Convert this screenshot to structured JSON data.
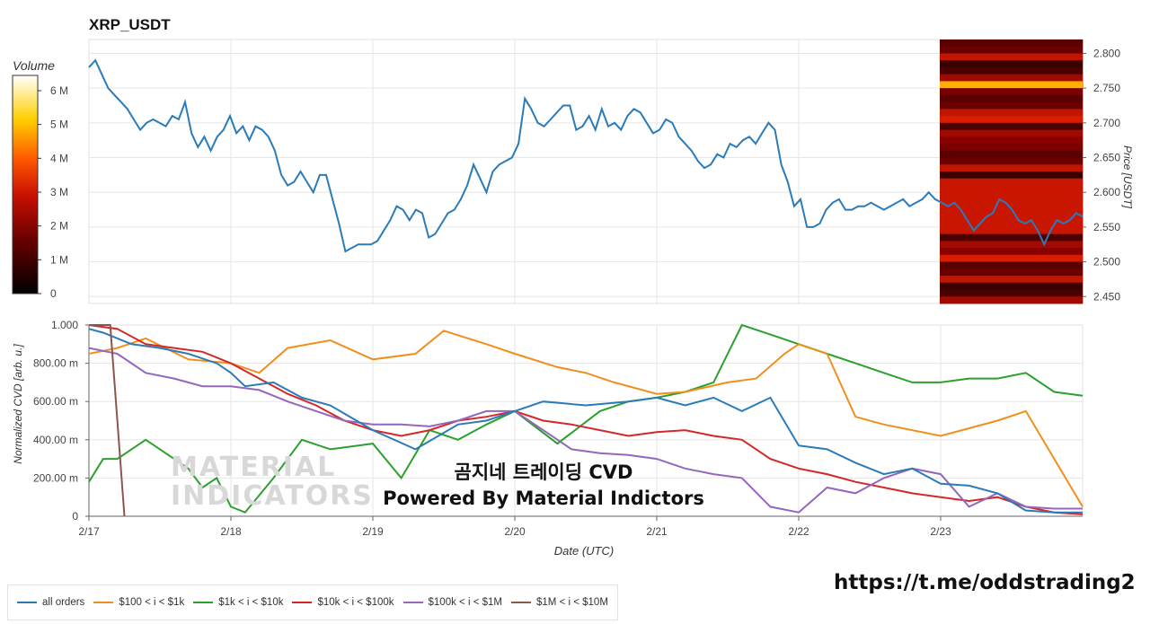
{
  "title": "XRP_USDT",
  "colorbar": {
    "title": "Volume",
    "ticks": [
      "0",
      "1 M",
      "2 M",
      "3 M",
      "4 M",
      "5 M",
      "6 M"
    ]
  },
  "chart_data": [
    {
      "type": "line",
      "title": "XRP_USDT",
      "ylabel": "Price [USDT]",
      "ylim": [
        2.44,
        2.82
      ],
      "y_ticks": [
        "2.450",
        "2.500",
        "2.550",
        "2.600",
        "2.650",
        "2.700",
        "2.750",
        "2.800"
      ],
      "xlim": [
        0,
        7.0
      ],
      "series": [
        {
          "color": "#2b7bb9",
          "values": [
            2.78,
            2.79,
            2.77,
            2.75,
            2.74,
            2.73,
            2.72,
            2.705,
            2.69,
            2.7,
            2.705,
            2.7,
            2.695,
            2.71,
            2.705,
            2.73,
            2.685,
            2.665,
            2.68,
            2.66,
            2.68,
            2.69,
            2.71,
            2.685,
            2.695,
            2.675,
            2.695,
            2.69,
            2.68,
            2.66,
            2.625,
            2.61,
            2.615,
            2.63,
            2.615,
            2.6,
            2.625,
            2.625,
            2.59,
            2.555,
            2.515,
            2.52,
            2.525,
            2.525,
            2.525,
            2.53,
            2.545,
            2.56,
            2.58,
            2.575,
            2.56,
            2.575,
            2.57,
            2.535,
            2.54,
            2.555,
            2.57,
            2.575,
            2.59,
            2.61,
            2.64,
            2.62,
            2.6,
            2.63,
            2.64,
            2.645,
            2.65,
            2.67,
            2.735,
            2.72,
            2.7,
            2.695,
            2.705,
            2.715,
            2.725,
            2.725,
            2.69,
            2.695,
            2.71,
            2.69,
            2.72,
            2.695,
            2.7,
            2.69,
            2.71,
            2.72,
            2.715,
            2.7,
            2.685,
            2.69,
            2.705,
            2.7,
            2.68,
            2.67,
            2.66,
            2.645,
            2.635,
            2.64,
            2.655,
            2.65,
            2.67,
            2.665,
            2.675,
            2.68,
            2.67,
            2.685,
            2.7,
            2.69,
            2.64,
            2.615,
            2.58,
            2.59,
            2.55,
            2.55,
            2.555,
            2.575,
            2.585,
            2.59,
            2.575,
            2.575,
            2.58,
            2.58,
            2.585,
            2.58,
            2.575,
            2.58,
            2.585,
            2.59,
            2.58,
            2.585,
            2.59,
            2.6,
            2.59,
            2.585,
            2.58,
            2.585,
            2.575,
            2.56,
            2.545,
            2.555,
            2.565,
            2.57,
            2.59,
            2.585,
            2.575,
            2.56,
            2.555,
            2.56,
            2.545,
            2.525,
            2.545,
            2.56,
            2.555,
            2.56,
            2.57,
            2.565
          ]
        }
      ]
    },
    {
      "type": "line",
      "xlabel": "Date (UTC)",
      "ylabel": "Normalized CVD [arb. u.]",
      "ylim": [
        0,
        1.0
      ],
      "y_ticks": [
        "0",
        "200.00 m",
        "400.00 m",
        "600.00 m",
        "800.00 m",
        "1.000"
      ],
      "x_ticks": [
        "2/17",
        "2/18",
        "2/19",
        "2/20",
        "2/21",
        "2/22",
        "2/23"
      ],
      "xlim": [
        0,
        7.0
      ],
      "series": [
        {
          "name": "all orders",
          "color": "#2b7bb9",
          "x": [
            0,
            0.1,
            0.3,
            0.5,
            0.7,
            0.9,
            1.0,
            1.1,
            1.3,
            1.5,
            1.7,
            2.0,
            2.3,
            2.6,
            2.8,
            3.0,
            3.2,
            3.5,
            3.8,
            4.0,
            4.2,
            4.4,
            4.6,
            4.8,
            5.0,
            5.2,
            5.4,
            5.6,
            5.8,
            6.0,
            6.2,
            6.4,
            6.6,
            6.8,
            7.0
          ],
          "values": [
            0.98,
            0.96,
            0.9,
            0.88,
            0.85,
            0.8,
            0.75,
            0.68,
            0.7,
            0.62,
            0.58,
            0.45,
            0.35,
            0.48,
            0.5,
            0.55,
            0.6,
            0.58,
            0.6,
            0.62,
            0.58,
            0.62,
            0.55,
            0.62,
            0.37,
            0.35,
            0.28,
            0.22,
            0.25,
            0.17,
            0.16,
            0.12,
            0.03,
            0.02,
            0.02
          ]
        },
        {
          "name": "$100 < i < $1k",
          "color": "#f28f1c",
          "x": [
            0,
            0.2,
            0.4,
            0.7,
            1.0,
            1.2,
            1.4,
            1.7,
            2.0,
            2.3,
            2.5,
            2.8,
            3.0,
            3.3,
            3.5,
            3.7,
            4.0,
            4.2,
            4.5,
            4.7,
            4.9,
            5.0,
            5.2,
            5.4,
            5.6,
            5.8,
            6.0,
            6.2,
            6.4,
            6.6,
            6.8,
            7.0
          ],
          "values": [
            0.85,
            0.88,
            0.93,
            0.82,
            0.8,
            0.75,
            0.88,
            0.92,
            0.82,
            0.85,
            0.97,
            0.9,
            0.85,
            0.78,
            0.75,
            0.7,
            0.64,
            0.65,
            0.7,
            0.72,
            0.85,
            0.9,
            0.85,
            0.52,
            0.48,
            0.45,
            0.42,
            0.46,
            0.5,
            0.55,
            0.3,
            0.05
          ]
        },
        {
          "name": "$1k < i < $10k",
          "color": "#2ca02c",
          "x": [
            0,
            0.1,
            0.2,
            0.3,
            0.4,
            0.5,
            0.6,
            0.7,
            0.8,
            0.9,
            1.0,
            1.1,
            1.3,
            1.5,
            1.7,
            2.0,
            2.2,
            2.4,
            2.6,
            2.8,
            3.0,
            3.3,
            3.6,
            3.8,
            4.0,
            4.2,
            4.4,
            4.6,
            4.8,
            5.0,
            5.2,
            5.4,
            5.6,
            5.8,
            6.0,
            6.2,
            6.4,
            6.6,
            6.8,
            7.0
          ],
          "values": [
            0.18,
            0.3,
            0.3,
            0.35,
            0.4,
            0.35,
            0.3,
            0.25,
            0.15,
            0.2,
            0.05,
            0.02,
            0.2,
            0.4,
            0.35,
            0.38,
            0.2,
            0.45,
            0.4,
            0.48,
            0.55,
            0.38,
            0.55,
            0.6,
            0.62,
            0.65,
            0.7,
            1.0,
            0.95,
            0.9,
            0.85,
            0.8,
            0.75,
            0.7,
            0.7,
            0.72,
            0.72,
            0.75,
            0.65,
            0.63
          ]
        },
        {
          "name": "$10k < i < $100k",
          "color": "#d62728",
          "x": [
            0,
            0.2,
            0.4,
            0.6,
            0.8,
            1.0,
            1.2,
            1.4,
            1.6,
            1.8,
            2.0,
            2.2,
            2.4,
            2.6,
            2.8,
            3.0,
            3.2,
            3.4,
            3.6,
            3.8,
            4.0,
            4.2,
            4.4,
            4.6,
            4.8,
            5.0,
            5.2,
            5.4,
            5.6,
            5.8,
            6.0,
            6.2,
            6.4,
            6.6,
            6.8,
            7.0
          ],
          "values": [
            1.0,
            0.98,
            0.9,
            0.88,
            0.86,
            0.8,
            0.72,
            0.64,
            0.58,
            0.5,
            0.45,
            0.42,
            0.45,
            0.5,
            0.52,
            0.55,
            0.5,
            0.48,
            0.45,
            0.42,
            0.44,
            0.45,
            0.42,
            0.4,
            0.3,
            0.25,
            0.22,
            0.18,
            0.15,
            0.12,
            0.1,
            0.08,
            0.1,
            0.05,
            0.02,
            0.01
          ]
        },
        {
          "name": "$100k < i < $1M",
          "color": "#9467bd",
          "x": [
            0,
            0.2,
            0.4,
            0.6,
            0.8,
            1.0,
            1.2,
            1.4,
            1.6,
            1.8,
            2.0,
            2.2,
            2.4,
            2.6,
            2.8,
            3.0,
            3.2,
            3.4,
            3.6,
            3.8,
            4.0,
            4.2,
            4.4,
            4.6,
            4.8,
            5.0,
            5.2,
            5.4,
            5.6,
            5.8,
            6.0,
            6.2,
            6.4,
            6.6,
            6.8,
            7.0
          ],
          "values": [
            0.88,
            0.85,
            0.75,
            0.72,
            0.68,
            0.68,
            0.66,
            0.6,
            0.55,
            0.5,
            0.48,
            0.48,
            0.47,
            0.5,
            0.55,
            0.55,
            0.45,
            0.35,
            0.33,
            0.32,
            0.3,
            0.25,
            0.22,
            0.2,
            0.05,
            0.02,
            0.15,
            0.12,
            0.2,
            0.25,
            0.22,
            0.05,
            0.12,
            0.05,
            0.04,
            0.04
          ]
        },
        {
          "name": "$1M < i < $10M",
          "color": "#8c564b",
          "x": [
            0,
            0.1,
            0.15,
            0.2,
            0.25
          ],
          "values": [
            1.0,
            1.0,
            1.0,
            0.5,
            0.0
          ]
        }
      ]
    }
  ],
  "overlay_text": {
    "line1": "곰지네 트레이딩 CVD",
    "line2": "Powered By Material Indictors",
    "url": "https://t.me/oddstrading2",
    "watermark1": "MATERIAL",
    "watermark2": "INDICATORS"
  }
}
